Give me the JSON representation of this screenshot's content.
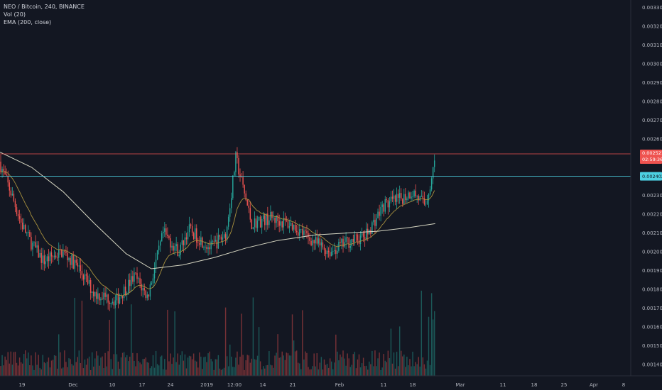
{
  "legend": {
    "symbol": "NEO / Bitcoin, 240, BINANCE",
    "volume": "Vol (20)",
    "ema": "EMA (200, close)"
  },
  "colors": {
    "background": "#131722",
    "up": "#26a69a",
    "down": "#ef5350",
    "ema200": "#d6d6c2",
    "ema_short": "#a8913e",
    "resistance_line": "#ef5350",
    "support_line": "#4dd0e1",
    "axis_text": "#b2b5be"
  },
  "chart_data": {
    "type": "candlestick",
    "symbol": "NEO / Bitcoin, 240, BINANCE",
    "y_ticks": [
      "0.001400",
      "0.001500",
      "0.001600",
      "0.001700",
      "0.001800",
      "0.001900",
      "0.002000",
      "0.002100",
      "0.002200",
      "0.002300",
      "0.002400",
      "0.002500",
      "0.002600",
      "0.002700",
      "0.002800",
      "0.002900",
      "0.003000",
      "0.003100",
      "0.003200",
      "0.003300"
    ],
    "ylim": [
      0.00134,
      0.00334
    ],
    "x_ticks": [
      "19",
      "Dec",
      "10",
      "17",
      "24",
      "2019",
      "12:00",
      "14",
      "21",
      "Feb",
      "11",
      "18",
      "Mar",
      "11",
      "18",
      "25",
      "Apr",
      "8"
    ],
    "price_path": [
      {
        "t": 0.0,
        "p": 0.00248
      },
      {
        "t": 0.04,
        "p": 0.0023
      },
      {
        "t": 0.07,
        "p": 0.00215
      },
      {
        "t": 0.1,
        "p": 0.00205
      },
      {
        "t": 0.14,
        "p": 0.00195
      },
      {
        "t": 0.2,
        "p": 0.002
      },
      {
        "t": 0.25,
        "p": 0.00192
      },
      {
        "t": 0.3,
        "p": 0.00178
      },
      {
        "t": 0.37,
        "p": 0.00174
      },
      {
        "t": 0.43,
        "p": 0.00187
      },
      {
        "t": 0.47,
        "p": 0.00176
      },
      {
        "t": 0.52,
        "p": 0.0021
      },
      {
        "t": 0.57,
        "p": 0.002
      },
      {
        "t": 0.6,
        "p": 0.00212
      },
      {
        "t": 0.67,
        "p": 0.00202
      },
      {
        "t": 0.72,
        "p": 0.0021
      },
      {
        "t": 0.75,
        "p": 0.0025
      },
      {
        "t": 0.8,
        "p": 0.00215
      },
      {
        "t": 0.86,
        "p": 0.00218
      },
      {
        "t": 0.93,
        "p": 0.00214
      },
      {
        "t": 1.0,
        "p": 0.00205
      },
      {
        "t": 1.05,
        "p": 0.002
      },
      {
        "t": 1.1,
        "p": 0.00205
      },
      {
        "t": 1.16,
        "p": 0.00208
      },
      {
        "t": 1.22,
        "p": 0.00225
      },
      {
        "t": 1.27,
        "p": 0.00228
      },
      {
        "t": 1.31,
        "p": 0.00232
      },
      {
        "t": 1.35,
        "p": 0.00225
      },
      {
        "t": 1.37,
        "p": 0.00238
      },
      {
        "t": 1.38,
        "p": 0.00252
      }
    ],
    "ema200_path": [
      {
        "t": 0.0,
        "p": 0.00253
      },
      {
        "t": 0.1,
        "p": 0.00245
      },
      {
        "t": 0.2,
        "p": 0.00232
      },
      {
        "t": 0.3,
        "p": 0.00215
      },
      {
        "t": 0.4,
        "p": 0.00199
      },
      {
        "t": 0.48,
        "p": 0.00191
      },
      {
        "t": 0.58,
        "p": 0.00193
      },
      {
        "t": 0.68,
        "p": 0.00197
      },
      {
        "t": 0.78,
        "p": 0.00202
      },
      {
        "t": 0.88,
        "p": 0.00206
      },
      {
        "t": 1.0,
        "p": 0.00209
      },
      {
        "t": 1.1,
        "p": 0.0021
      },
      {
        "t": 1.2,
        "p": 0.00211
      },
      {
        "t": 1.3,
        "p": 0.00213
      },
      {
        "t": 1.38,
        "p": 0.00215
      }
    ],
    "resistance_level": {
      "price": 0.002521,
      "label": "0.002521",
      "sublabel": "02:59:36"
    },
    "support_level": {
      "price": 0.002402,
      "label": "0.002402"
    }
  }
}
